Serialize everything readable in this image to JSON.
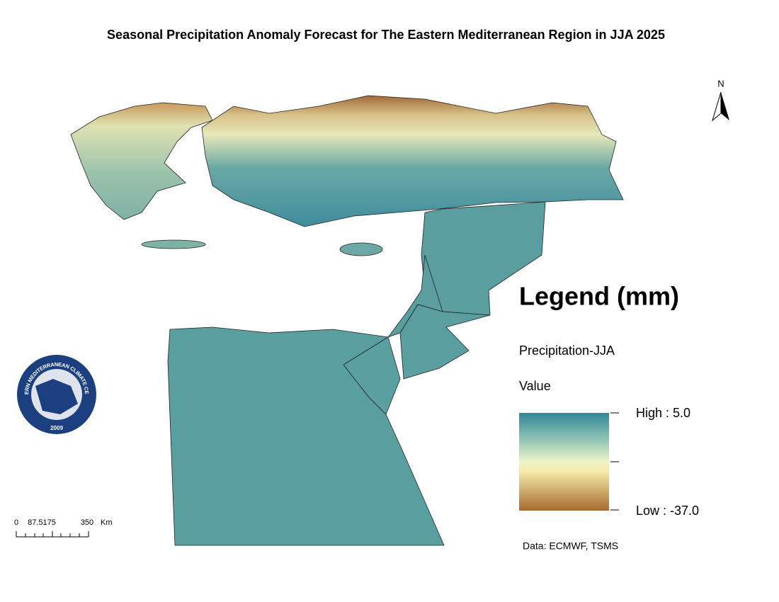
{
  "title": "Seasonal Precipitation Anomaly Forecast for The Eastern Mediterranean Region in JJA 2025",
  "north_arrow": "N",
  "legend": {
    "title": "Legend (mm)",
    "layer": "Precipitation-JJA",
    "field": "Value",
    "high": "High : 5.0",
    "low": "Low : -37.0"
  },
  "scale_bar": {
    "labels": [
      "0",
      "87.5175",
      "350"
    ],
    "unit": "Km"
  },
  "logo": {
    "text": "EASTERN MEDITERRANEAN CLIMATE CENTRE",
    "year": "2009"
  },
  "source": "Data: ECMWF, TSMS"
}
